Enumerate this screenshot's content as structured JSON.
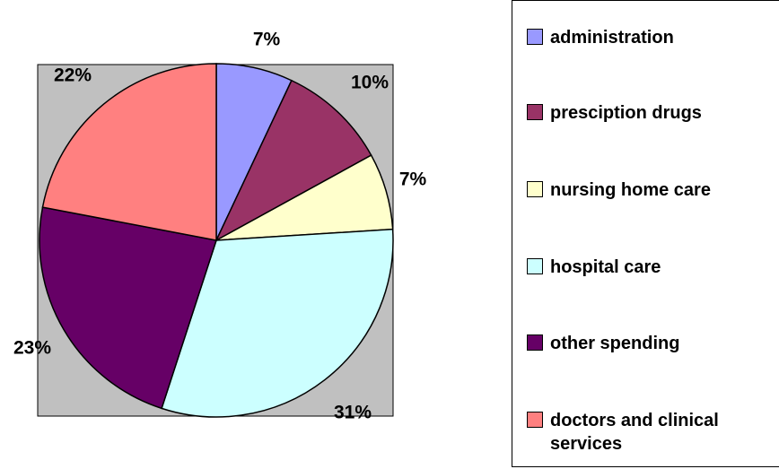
{
  "chart_data": {
    "type": "pie",
    "categories": [
      "administration",
      "presciption drugs",
      "nursing home care",
      "hospital care",
      "other spending",
      "doctors and clinical services"
    ],
    "values": [
      7,
      10,
      7,
      31,
      23,
      22
    ],
    "value_labels": [
      "7%",
      "10%",
      "7%",
      "31%",
      "23%",
      "22%"
    ],
    "colors": [
      "#9999ff",
      "#993366",
      "#ffffcc",
      "#ccffff",
      "#660066",
      "#ff8080"
    ]
  }
}
